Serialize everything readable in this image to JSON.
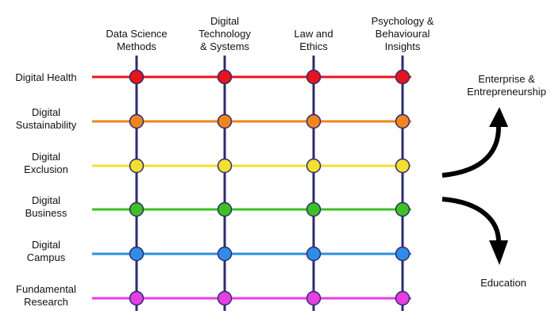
{
  "columns": [
    {
      "lines": [
        "Data Science",
        "Methods"
      ]
    },
    {
      "lines": [
        "Digital",
        "Technology",
        "& Systems"
      ]
    },
    {
      "lines": [
        "Law and",
        "Ethics"
      ]
    },
    {
      "lines": [
        "Psychology &",
        "Behavioural",
        "Insights"
      ]
    }
  ],
  "rows": [
    {
      "lines": [
        "Digital Health"
      ],
      "color": "#e8141b"
    },
    {
      "lines": [
        "Digital",
        "Sustainability"
      ],
      "color": "#f0841e"
    },
    {
      "lines": [
        "Digital",
        "Exclusion"
      ],
      "color": "#f2e02f"
    },
    {
      "lines": [
        "Digital",
        "Business"
      ],
      "color": "#3ec124"
    },
    {
      "lines": [
        "Digital",
        "Campus"
      ],
      "color": "#2f8de8"
    },
    {
      "lines": [
        "Fundamental",
        "Research"
      ],
      "color": "#e63ee3"
    }
  ],
  "outcomes": {
    "upper": {
      "lines": [
        "Enterprise &",
        "Entrepreneurship"
      ]
    },
    "lower": {
      "lines": [
        "Education"
      ]
    }
  },
  "colors": {
    "column_line": "#2e2b6e",
    "node_stroke": "#2e2b6e",
    "arrow": "#000000",
    "text": "#111111"
  }
}
